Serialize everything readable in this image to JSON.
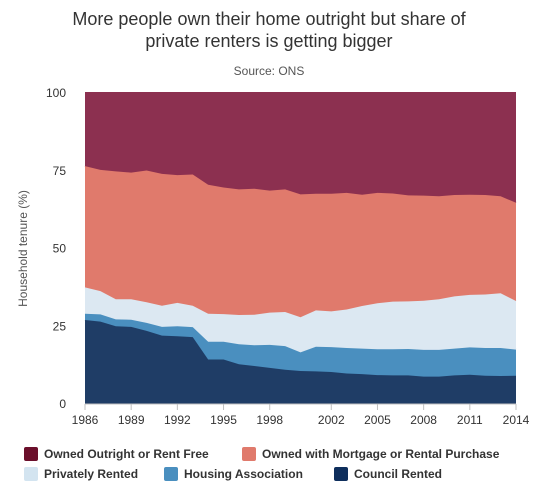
{
  "title_lines": [
    "More people own their home outright but share of",
    "private renters is getting bigger"
  ],
  "subtitle": "Source: ONS",
  "chart_data": {
    "type": "area",
    "stacked": true,
    "ylabel": "Household tenure (%)",
    "xlabel": "",
    "ylim": [
      0,
      100
    ],
    "xlim": [
      1986,
      2014
    ],
    "yticks": [
      0,
      25,
      50,
      75,
      100
    ],
    "xticks": [
      1986,
      1989,
      1992,
      1995,
      1998,
      2002,
      2005,
      2008,
      2011,
      2014
    ],
    "grid": true,
    "legend_position": "bottom",
    "x": [
      1986,
      1987,
      1988,
      1989,
      1990,
      1991,
      1992,
      1993,
      1994,
      1995,
      1996,
      1997,
      1998,
      1999,
      2000,
      2001,
      2002,
      2003,
      2004,
      2005,
      2006,
      2007,
      2008,
      2009,
      2010,
      2011,
      2012,
      2013,
      2014
    ],
    "series": [
      {
        "name": "Council Rented",
        "color": "#1f3d66",
        "values": [
          27,
          26.5,
          25,
          24.8,
          23.5,
          22,
          21.8,
          21.5,
          14.3,
          14.3,
          12.8,
          12.2,
          11.6,
          11,
          10.6,
          10.5,
          10.3,
          9.8,
          9.6,
          9.3,
          9.2,
          9.2,
          8.8,
          8.8,
          9.2,
          9.4,
          9.1,
          9,
          9.1
        ]
      },
      {
        "name": "Housing Association",
        "color": "#4a8fbf",
        "values": [
          2,
          2.3,
          2.2,
          2.3,
          2.6,
          2.8,
          3.2,
          3.2,
          5.7,
          5.7,
          6.4,
          6.7,
          7.4,
          7.6,
          6,
          7.9,
          8,
          8.2,
          8.2,
          8.3,
          8.4,
          8.5,
          8.6,
          8.6,
          8.6,
          8.8,
          8.9,
          9,
          8.4
        ]
      },
      {
        "name": "Privately Rented",
        "color": "#dce8f2",
        "values": [
          8.5,
          7.5,
          6.5,
          6.6,
          6.6,
          6.8,
          7.5,
          6.9,
          9,
          8.9,
          9.4,
          9.8,
          10.4,
          11,
          11.3,
          11.7,
          11.5,
          12.4,
          13.7,
          14.8,
          15.3,
          15.3,
          15.8,
          16.3,
          16.8,
          16.9,
          17.2,
          17.6,
          15.6
        ]
      },
      {
        "name": "Owned with Mortgage or Rental Purchase",
        "color": "#e07a6c",
        "values": [
          39,
          39,
          41.1,
          40.7,
          42.4,
          42.4,
          41.1,
          42.2,
          41.5,
          40.7,
          40.4,
          40.5,
          39.2,
          39.4,
          39.5,
          37.5,
          37.8,
          37.5,
          35.8,
          35.5,
          34.8,
          34.1,
          33.8,
          33.1,
          32.6,
          32.2,
          32,
          31.2,
          31.6
        ]
      },
      {
        "name": "Owned Outright or Rent Free",
        "color": "#8c3050",
        "values": [
          23.5,
          24.7,
          25.2,
          25.6,
          24.9,
          26,
          26.4,
          26.2,
          29.5,
          30.4,
          31,
          30.8,
          31.4,
          31,
          32.6,
          32.4,
          32.4,
          32.1,
          32.7,
          32.1,
          32.3,
          32.9,
          33,
          33.2,
          32.8,
          32.7,
          32.8,
          33.2,
          35.3
        ]
      }
    ]
  },
  "legend": [
    {
      "label": "Owned Outright or Rent Free",
      "color": "#6b0f2b"
    },
    {
      "label": "Owned with Mortgage or Rental Purchase",
      "color": "#e07a6c"
    },
    {
      "label": "Privately Rented",
      "color": "#d3e4f0"
    },
    {
      "label": "Housing Association",
      "color": "#4a8fbf"
    },
    {
      "label": "Council Rented",
      "color": "#0e2e5c"
    }
  ]
}
